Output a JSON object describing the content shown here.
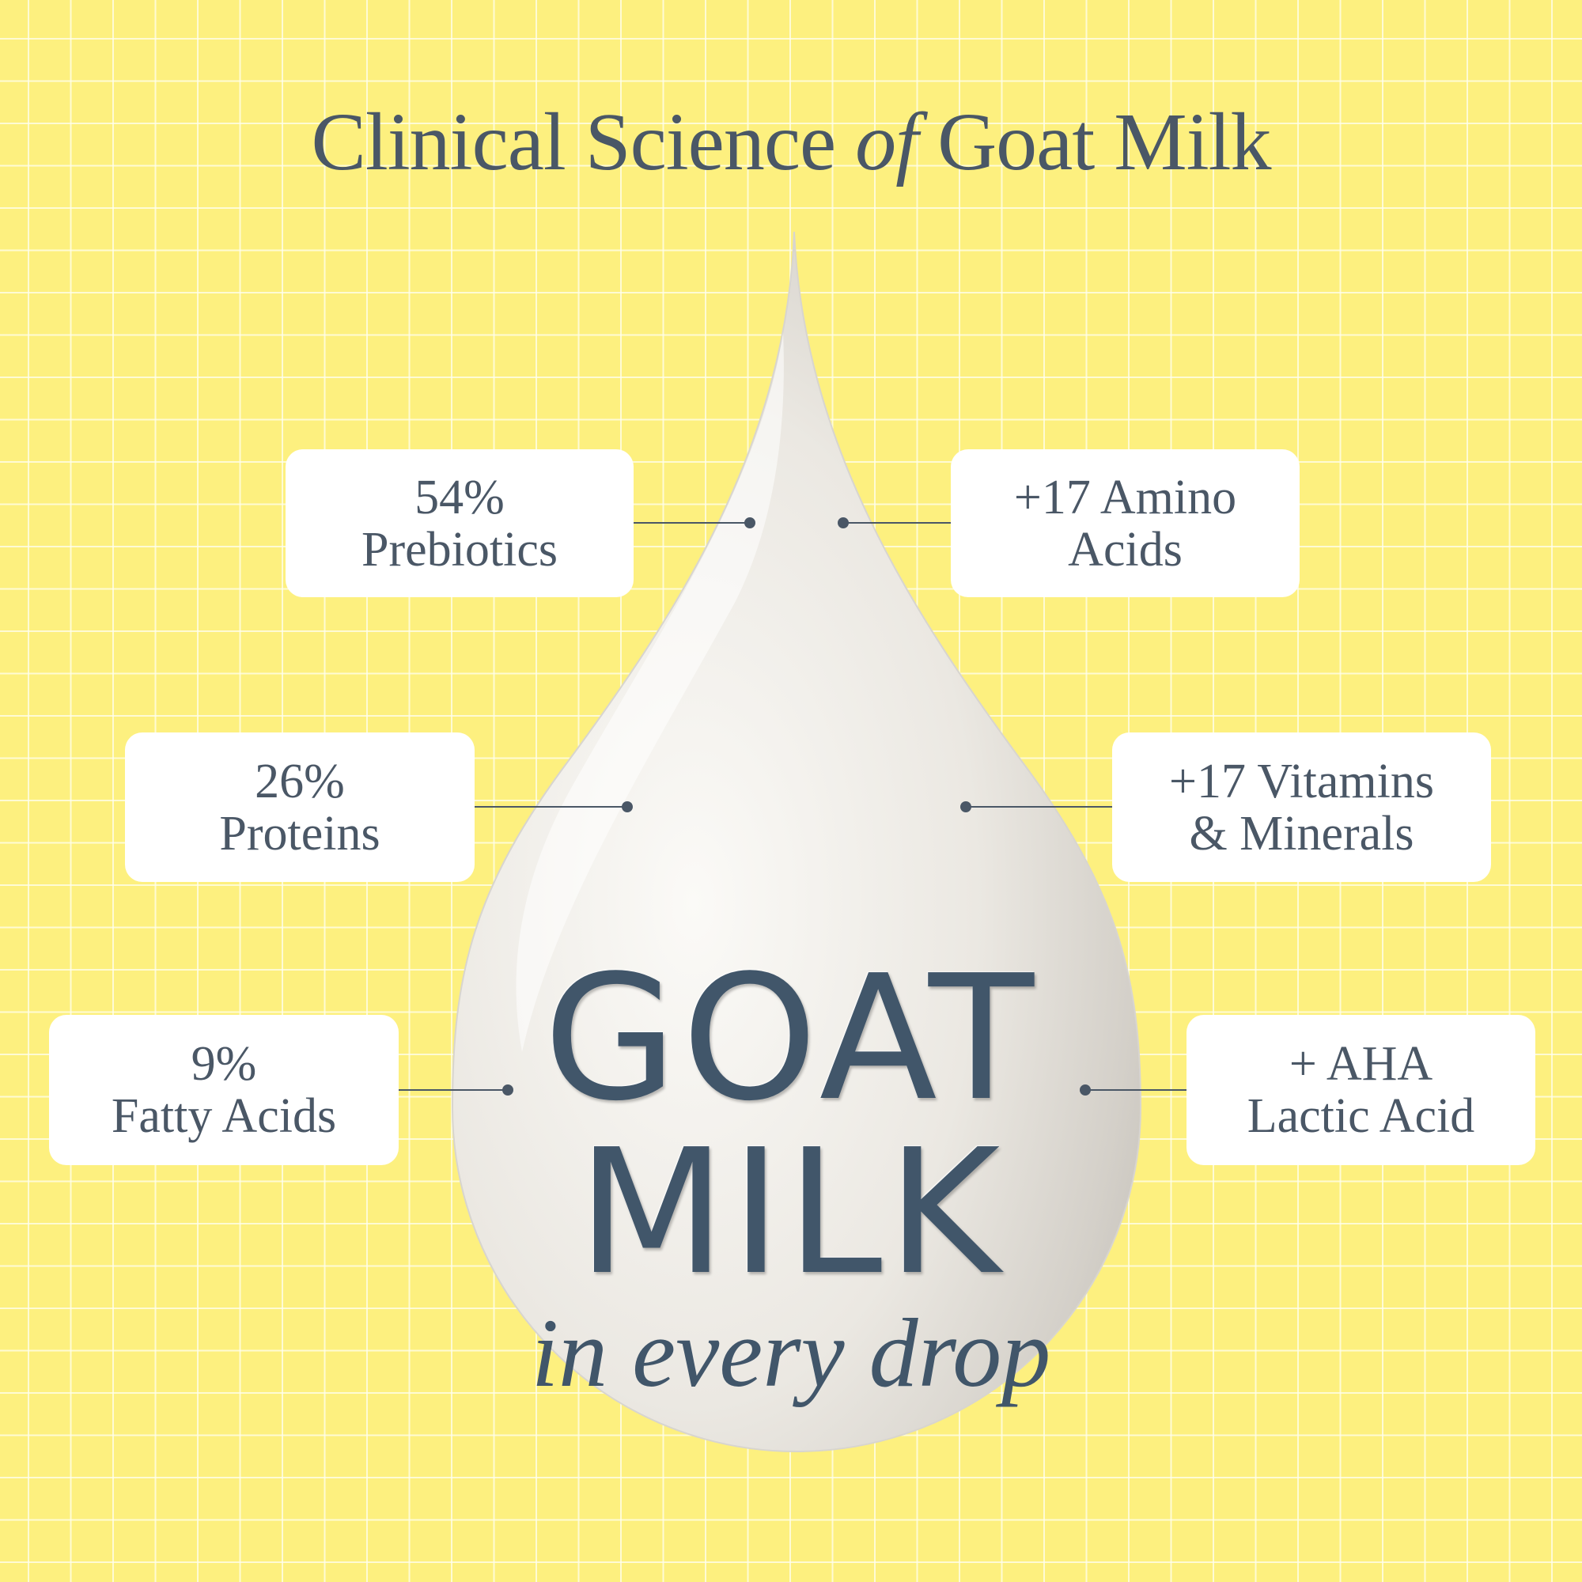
{
  "title": {
    "before": "Clinical Science ",
    "italic": "of",
    "after": " Goat Milk"
  },
  "drop": {
    "line1": "GOAT",
    "line2": "MILK",
    "tagline": "in every drop"
  },
  "callouts": [
    {
      "line1": "54%",
      "line2": "Prebiotics"
    },
    {
      "line1": "+17 Amino",
      "line2": "Acids"
    },
    {
      "line1": "26%",
      "line2": "Proteins"
    },
    {
      "line1": "+17 Vitamins",
      "line2": "& Minerals"
    },
    {
      "line1": "9%",
      "line2": "Fatty Acids"
    },
    {
      "line1": "+ AHA",
      "line2": "Lactic Acid"
    }
  ],
  "colors": {
    "background": "#fdf07f",
    "text": "#4a5766",
    "drop": "#f2f0ec"
  }
}
